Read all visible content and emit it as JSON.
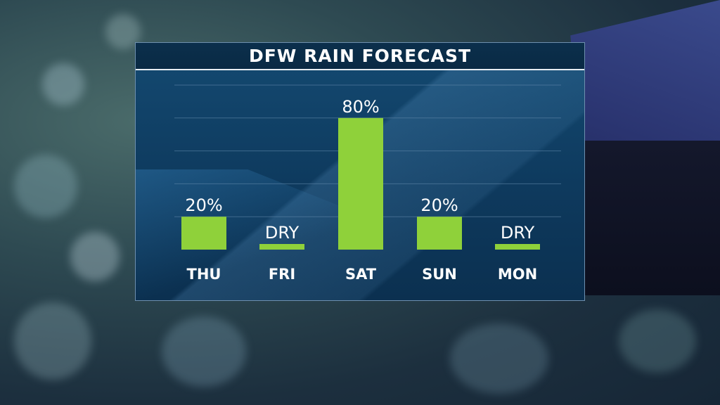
{
  "header": {
    "title": "DFW RAIN FORECAST"
  },
  "colors": {
    "bar": "#8fd13a",
    "panel": "#0e3a5e",
    "text": "#ffffff",
    "grid": "#5f86a8"
  },
  "chart_data": {
    "type": "bar",
    "title": "DFW RAIN FORECAST",
    "categories": [
      "THU",
      "FRI",
      "SAT",
      "SUN",
      "MON"
    ],
    "values": [
      20,
      0,
      80,
      20,
      0
    ],
    "labels": [
      "20%",
      "DRY",
      "80%",
      "20%",
      "DRY"
    ],
    "unit": "%",
    "ylim": [
      0,
      100
    ],
    "grid": true,
    "legend": "none"
  }
}
